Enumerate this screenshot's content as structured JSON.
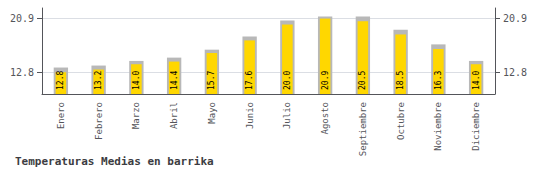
{
  "chart_data": {
    "type": "bar",
    "title": "Temperaturas Medias en barrika",
    "categories": [
      "Enero",
      "Febrero",
      "Marzo",
      "Abril",
      "Mayo",
      "Junio",
      "Julio",
      "Agosto",
      "Septiembre",
      "Octubre",
      "Noviembre",
      "Diciembre"
    ],
    "series": [
      {
        "color": "#B8B8B8",
        "values": [
          13.5,
          13.8,
          14.5,
          15.0,
          16.2,
          18.2,
          20.6,
          21.2,
          21.2,
          19.2,
          17.0,
          14.5
        ]
      },
      {
        "color": "#FFD700",
        "values": [
          12.8,
          13.2,
          14.0,
          14.4,
          15.7,
          17.6,
          20.0,
          20.9,
          20.5,
          18.5,
          16.3,
          14.0
        ],
        "value_labels": [
          "12.8",
          "13.2",
          "14.0",
          "14.4",
          "15.7",
          "17.6",
          "20.0",
          "20.9",
          "20.5",
          "18.5",
          "16.3",
          "14.0"
        ],
        "data_labels": true
      }
    ],
    "ylim": [
      9.5,
      22.5
    ],
    "yticks": [
      12.8,
      20.9
    ],
    "y2lim": [
      9.5,
      22.5
    ],
    "y2ticks": [
      12.8,
      20.9
    ],
    "grid": true
  }
}
